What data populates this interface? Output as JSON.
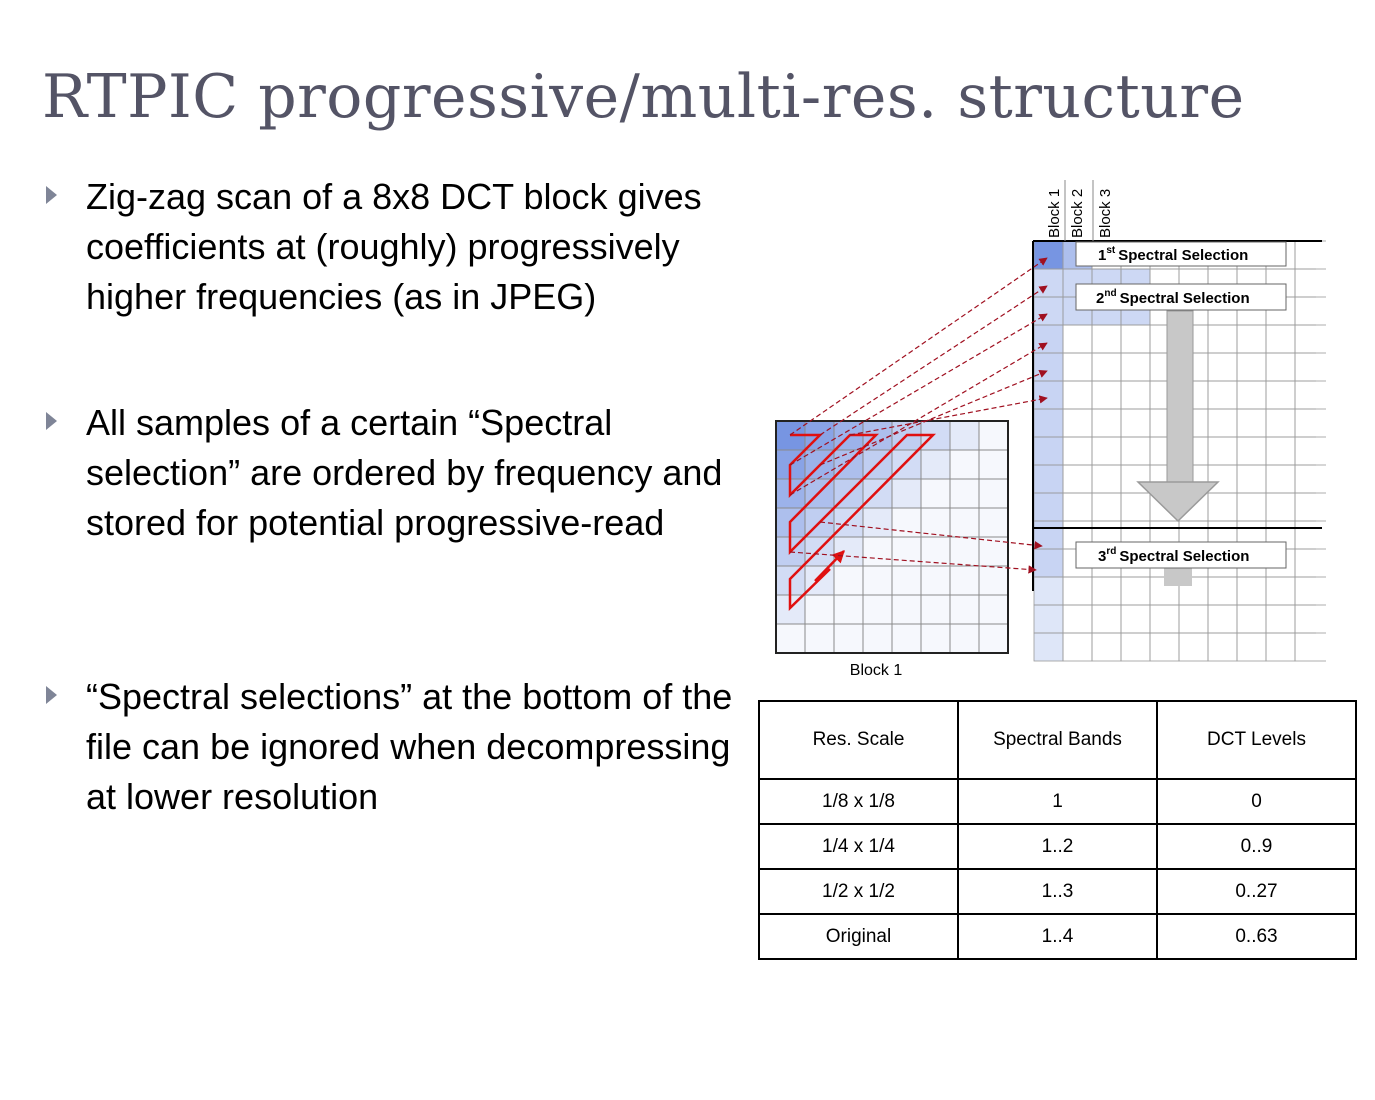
{
  "title": "RTPIC progressive/multi-res. structure",
  "bullets": [
    "Zig-zag scan of a 8x8 DCT block gives coefficients at (roughly) progressively higher frequencies (as in JPEG)",
    "All samples of a certain “Spectral selection” are ordered by frequency and stored for potential progressive-read",
    "“Spectral selections” at the bottom of the file can be ignored when decompressing at lower resolution"
  ],
  "diagram": {
    "block_columns": [
      "Block 1",
      "Block 2",
      "Block 3"
    ],
    "selections": [
      {
        "num": "1",
        "sup": "st",
        "label": "Spectral Selection"
      },
      {
        "num": "2",
        "sup": "nd",
        "label": "Spectral Selection"
      },
      {
        "num": "3",
        "sup": "rd",
        "label": "Spectral Selection"
      }
    ],
    "block_caption": "Block 1",
    "colors": {
      "grid_fill": "#4a72d8",
      "scan_line": "#e01010",
      "arrow_line": "#a01020",
      "big_arrow": "#c8c8c8"
    }
  },
  "table": {
    "headers": [
      "Res. Scale",
      "Spectral Bands",
      "DCT Levels"
    ],
    "rows": [
      [
        "1/8 x 1/8",
        "1",
        "0"
      ],
      [
        "1/4 x 1/4",
        "1..2",
        "0..9"
      ],
      [
        "1/2 x 1/2",
        "1..3",
        "0..27"
      ],
      [
        "Original",
        "1..4",
        "0..63"
      ]
    ]
  }
}
